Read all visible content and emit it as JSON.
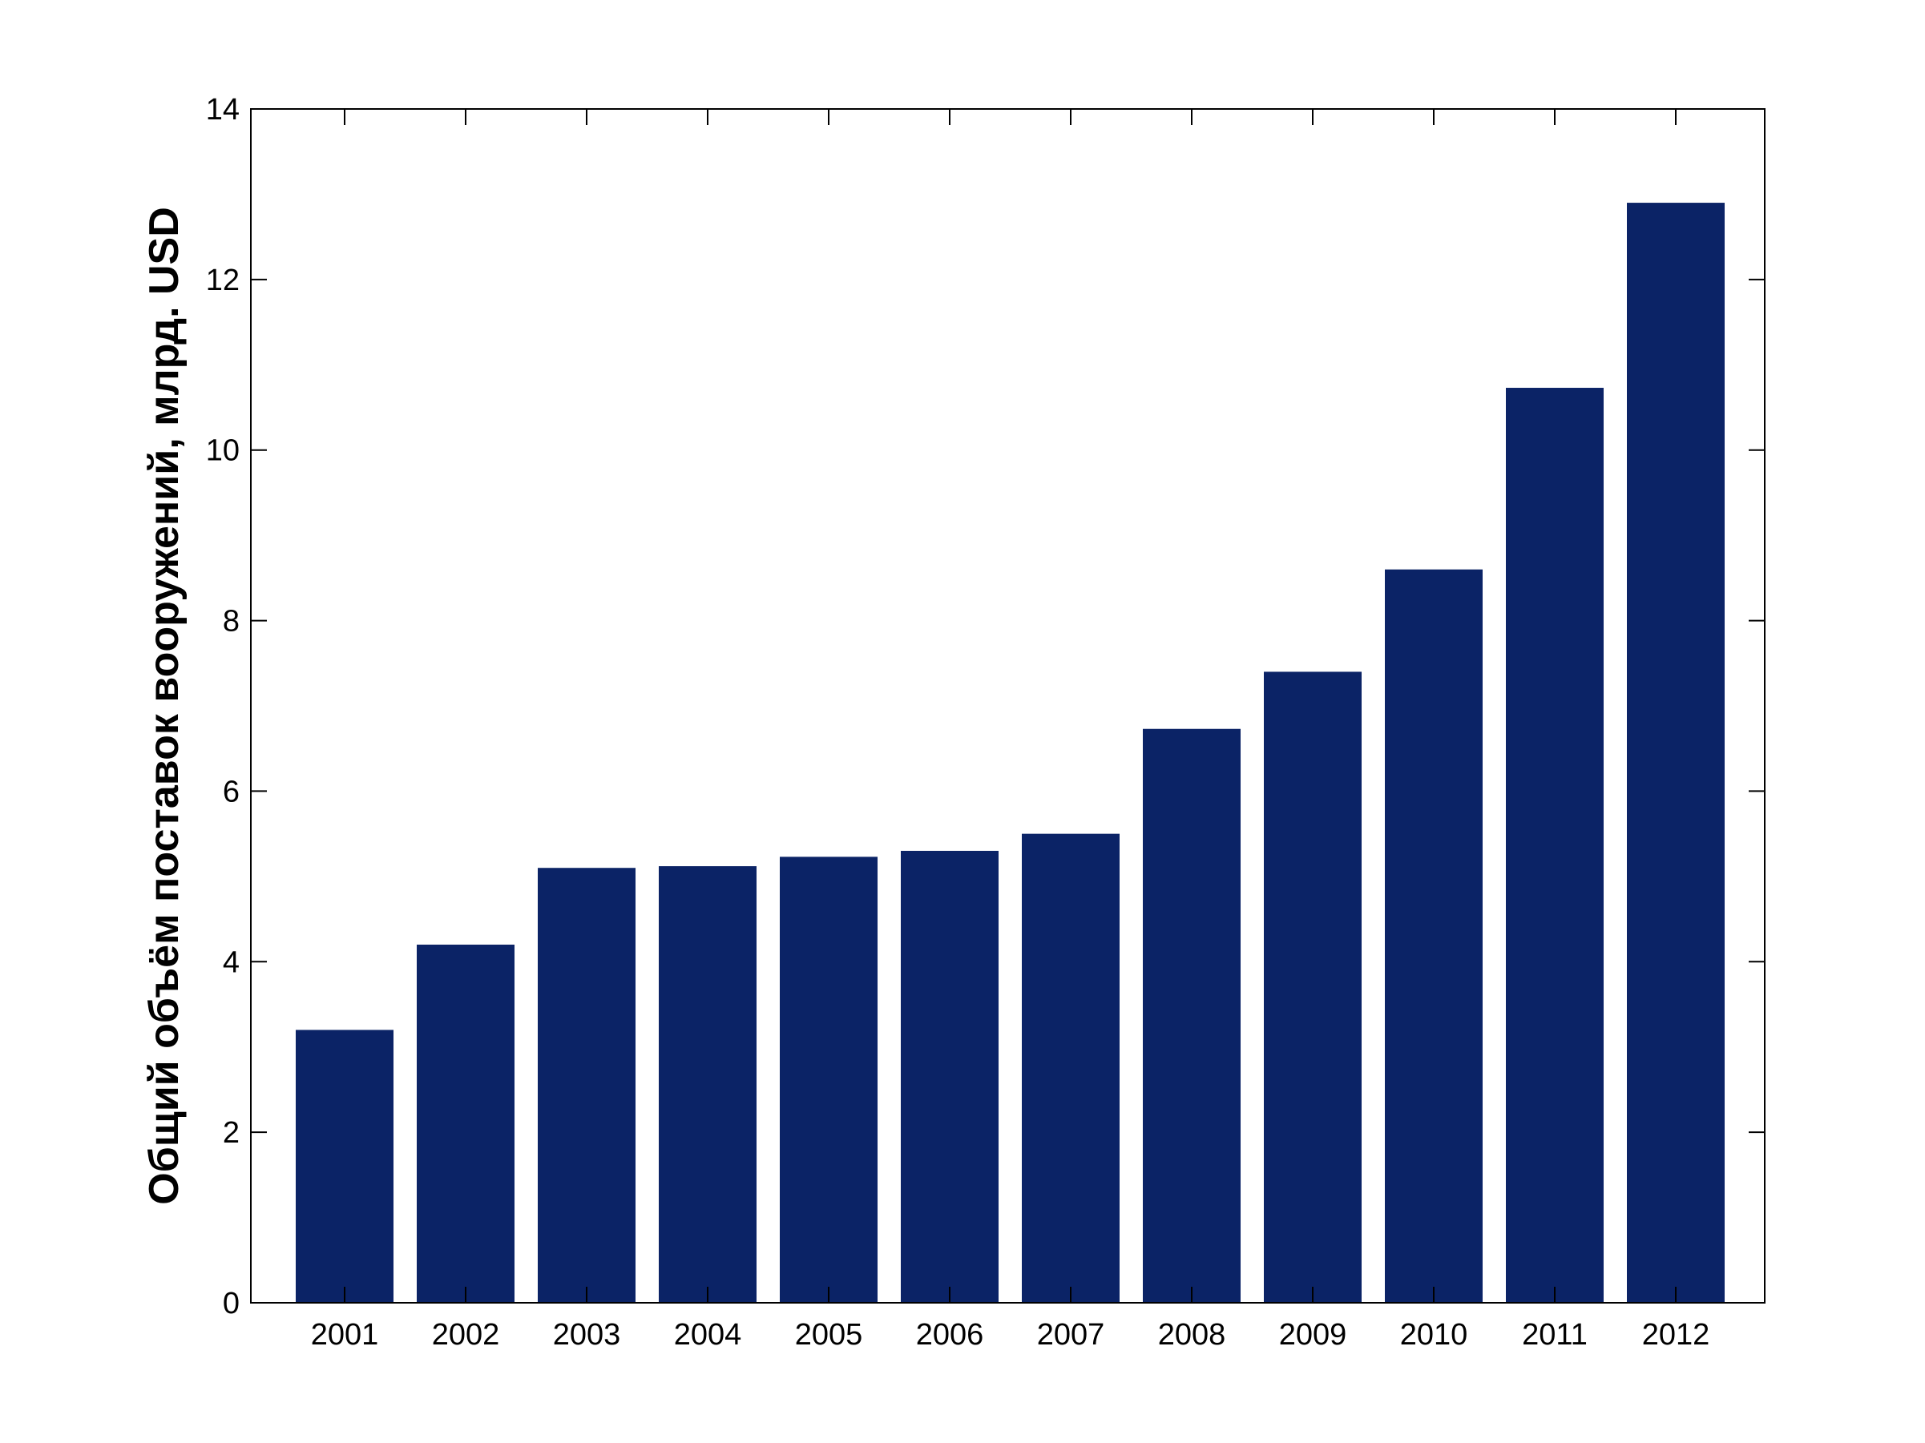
{
  "chart_data": {
    "type": "bar",
    "title": "",
    "xlabel": "",
    "ylabel": "Общий объём поставок вооружений, млрд. USD",
    "categories": [
      "2001",
      "2002",
      "2003",
      "2004",
      "2005",
      "2006",
      "2007",
      "2008",
      "2009",
      "2010",
      "2011",
      "2012"
    ],
    "values": [
      3.2,
      4.2,
      5.1,
      5.12,
      5.23,
      5.3,
      5.5,
      6.73,
      7.4,
      8.6,
      10.73,
      12.9
    ],
    "ylim": [
      0,
      14
    ],
    "yticks": [
      "0",
      "2",
      "4",
      "6",
      "8",
      "10",
      "12",
      "14"
    ],
    "grid": false,
    "legend": "none",
    "bar_color": "#0b2366",
    "axis_color": "#000000",
    "background": "#ffffff"
  }
}
